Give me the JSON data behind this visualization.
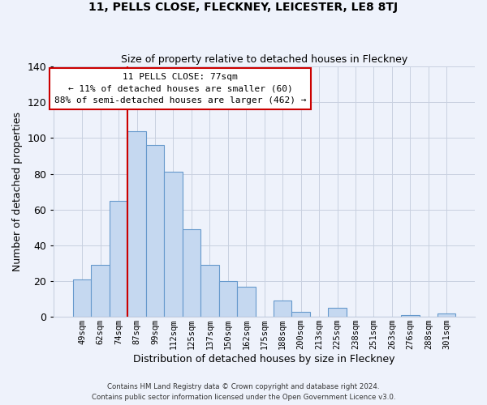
{
  "title": "11, PELLS CLOSE, FLECKNEY, LEICESTER, LE8 8TJ",
  "subtitle": "Size of property relative to detached houses in Fleckney",
  "xlabel": "Distribution of detached houses by size in Fleckney",
  "ylabel": "Number of detached properties",
  "bar_labels": [
    "49sqm",
    "62sqm",
    "74sqm",
    "87sqm",
    "99sqm",
    "112sqm",
    "125sqm",
    "137sqm",
    "150sqm",
    "162sqm",
    "175sqm",
    "188sqm",
    "200sqm",
    "213sqm",
    "225sqm",
    "238sqm",
    "251sqm",
    "263sqm",
    "276sqm",
    "288sqm",
    "301sqm"
  ],
  "bar_values": [
    21,
    29,
    65,
    104,
    96,
    81,
    49,
    29,
    20,
    17,
    0,
    9,
    3,
    0,
    5,
    0,
    0,
    0,
    1,
    0,
    2
  ],
  "bar_color": "#c5d8f0",
  "bar_edgecolor": "#6699cc",
  "vline_x": 2.5,
  "vline_color": "#cc0000",
  "ylim": [
    0,
    140
  ],
  "yticks": [
    0,
    20,
    40,
    60,
    80,
    100,
    120,
    140
  ],
  "annotation_title": "11 PELLS CLOSE: 77sqm",
  "annotation_line1": "← 11% of detached houses are smaller (60)",
  "annotation_line2": "88% of semi-detached houses are larger (462) →",
  "footer1": "Contains HM Land Registry data © Crown copyright and database right 2024.",
  "footer2": "Contains public sector information licensed under the Open Government Licence v3.0.",
  "background_color": "#eef2fb",
  "plot_background": "#eef2fb",
  "grid_color": "#c8d0e0"
}
